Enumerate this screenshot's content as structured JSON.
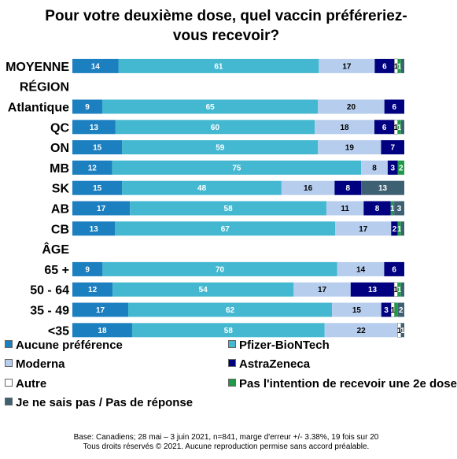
{
  "title_lines": [
    "Pour votre deuxième dose, quel vaccin préféreriez-",
    "vous recevoir?"
  ],
  "colors": {
    "aucune": "#1c7fc0",
    "pfizer": "#44b8d0",
    "moderna": "#b6cdee",
    "astrazeneca": "#000080",
    "autre": "#ffffff",
    "pas_intention": "#1f9a48",
    "je_ne_sais_pas": "#3e6073"
  },
  "legend": [
    {
      "key": "aucune",
      "label": "Aucune préférence"
    },
    {
      "key": "pfizer",
      "label": "Pfizer-BioNTech"
    },
    {
      "key": "moderna",
      "label": "Moderna"
    },
    {
      "key": "astrazeneca",
      "label": "AstraZeneca"
    },
    {
      "key": "autre",
      "label": "Autre"
    },
    {
      "key": "pas_intention",
      "label": "Pas l'intention de recevoir une 2e dose"
    },
    {
      "key": "je_ne_sais_pas",
      "label": "Je ne sais pas / Pas de réponse"
    }
  ],
  "footer_lines": [
    "Base: Canadiens; 28 mai – 3 juin 2021, n=841, marge d'erreur +/- 3.38%, 19 fois sur 20",
    "Tous droits réservés © 2021. Aucune reproduction permise sans accord préalable."
  ],
  "chart_data": {
    "type": "bar",
    "orientation": "horizontal",
    "stacked": true,
    "xlim": [
      0,
      100
    ],
    "series_keys": [
      "aucune",
      "pfizer",
      "moderna",
      "astrazeneca",
      "autre",
      "pas_intention",
      "je_ne_sais_pas"
    ],
    "rows": [
      {
        "label": "MOYENNE",
        "values": [
          14,
          61,
          17,
          6,
          1,
          1,
          1
        ],
        "labels": [
          "14",
          "61",
          "17",
          "6",
          "1",
          "1",
          ""
        ]
      },
      {
        "label": "RÉGION",
        "header": true
      },
      {
        "label": "Atlantique",
        "values": [
          9,
          65,
          20,
          6,
          0,
          0,
          0
        ],
        "labels": [
          "9",
          "65",
          "20",
          "6",
          "",
          "",
          ""
        ]
      },
      {
        "label": "QC",
        "values": [
          13,
          60,
          18,
          6,
          1,
          1,
          1
        ],
        "labels": [
          "13",
          "60",
          "18",
          "6",
          "1",
          "1",
          ""
        ]
      },
      {
        "label": "ON",
        "values": [
          15,
          59,
          19,
          7,
          0,
          0,
          0
        ],
        "labels": [
          "15",
          "59",
          "19",
          "7",
          "",
          "",
          ""
        ]
      },
      {
        "label": "MB",
        "values": [
          12,
          75,
          8,
          3,
          0,
          2,
          0
        ],
        "labels": [
          "12",
          "75",
          "8",
          "3",
          "",
          "2",
          ""
        ]
      },
      {
        "label": "SK",
        "values": [
          15,
          48,
          16,
          8,
          0,
          0,
          13
        ],
        "labels": [
          "15",
          "48",
          "16",
          "8",
          "",
          "",
          "13"
        ]
      },
      {
        "label": "AB",
        "values": [
          17,
          58,
          11,
          8,
          0,
          1,
          3
        ],
        "labels": [
          "17",
          "58",
          "11",
          "8",
          "",
          "1",
          "3"
        ]
      },
      {
        "label": "CB",
        "values": [
          13,
          67,
          17,
          2,
          0,
          1,
          1
        ],
        "labels": [
          "13",
          "67",
          "17",
          "2",
          "",
          "1",
          ""
        ]
      },
      {
        "label": "ÂGE",
        "header": true
      },
      {
        "label": "65 +",
        "values": [
          9,
          70,
          14,
          6,
          0,
          0,
          0
        ],
        "labels": [
          "9",
          "70",
          "14",
          "6",
          "",
          "",
          ""
        ]
      },
      {
        "label": "50 - 64",
        "values": [
          12,
          54,
          17,
          13,
          1,
          1,
          1
        ],
        "labels": [
          "12",
          "54",
          "17",
          "13",
          "1",
          "1",
          ""
        ]
      },
      {
        "label": "35 - 49",
        "values": [
          17,
          62,
          15,
          3,
          1,
          1,
          2
        ],
        "labels": [
          "17",
          "62",
          "15",
          "3",
          "1",
          "",
          "2"
        ]
      },
      {
        "label": "<35",
        "values": [
          18,
          58,
          22,
          0,
          1,
          0,
          1
        ],
        "labels": [
          "18",
          "58",
          "22",
          "",
          "1",
          "",
          "1"
        ]
      }
    ]
  }
}
